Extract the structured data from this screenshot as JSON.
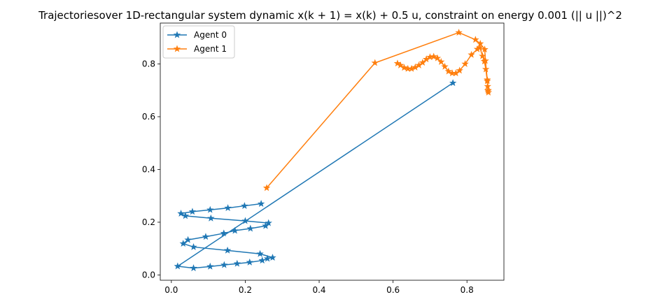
{
  "chart_data": {
    "type": "line",
    "title": "Trajectoriesover 1D-rectangular system dynamic x(k + 1) = x(k) + 0.5 u, constraint on energy 0.001 (|| u ||)^2",
    "xlabel": "",
    "ylabel": "",
    "xlim": [
      -0.03,
      0.9
    ],
    "ylim": [
      -0.02,
      0.955
    ],
    "xticks": [
      "0.0",
      "0.2",
      "0.4",
      "0.6",
      "0.8"
    ],
    "yticks": [
      "0.0",
      "0.2",
      "0.4",
      "0.6",
      "0.8"
    ],
    "grid": false,
    "legend": "upper-left",
    "series": [
      {
        "name": "Agent 0",
        "color": "#1f77b4",
        "marker": "star",
        "x": [
          0.762,
          0.017,
          0.06,
          0.105,
          0.143,
          0.178,
          0.212,
          0.246,
          0.26,
          0.274,
          0.24,
          0.152,
          0.06,
          0.032,
          0.045,
          0.093,
          0.142,
          0.172,
          0.214,
          0.255,
          0.263,
          0.2,
          0.107,
          0.038,
          0.026,
          0.057,
          0.105,
          0.153,
          0.198,
          0.243
        ],
        "y": [
          0.728,
          0.033,
          0.026,
          0.032,
          0.038,
          0.043,
          0.048,
          0.055,
          0.062,
          0.066,
          0.08,
          0.093,
          0.106,
          0.119,
          0.133,
          0.145,
          0.158,
          0.168,
          0.176,
          0.186,
          0.197,
          0.205,
          0.215,
          0.224,
          0.233,
          0.24,
          0.247,
          0.254,
          0.262,
          0.27
        ]
      },
      {
        "name": "Agent 1",
        "color": "#ff7f0e",
        "marker": "star",
        "x": [
          0.258,
          0.551,
          0.778,
          0.823,
          0.836,
          0.848,
          0.85,
          0.855,
          0.856,
          0.857,
          0.858,
          0.857,
          0.855,
          0.851,
          0.847,
          0.842,
          0.835,
          0.828,
          0.812,
          0.795,
          0.78,
          0.77,
          0.76,
          0.75,
          0.74,
          0.73,
          0.72,
          0.71,
          0.7,
          0.69,
          0.68,
          0.67,
          0.66,
          0.65,
          0.64,
          0.63,
          0.62,
          0.612
        ],
        "y": [
          0.33,
          0.804,
          0.919,
          0.892,
          0.877,
          0.855,
          0.812,
          0.74,
          0.715,
          0.698,
          0.692,
          0.7,
          0.735,
          0.78,
          0.81,
          0.83,
          0.862,
          0.856,
          0.835,
          0.8,
          0.775,
          0.765,
          0.765,
          0.772,
          0.79,
          0.808,
          0.822,
          0.828,
          0.826,
          0.818,
          0.805,
          0.795,
          0.787,
          0.782,
          0.782,
          0.786,
          0.795,
          0.802
        ]
      }
    ]
  }
}
